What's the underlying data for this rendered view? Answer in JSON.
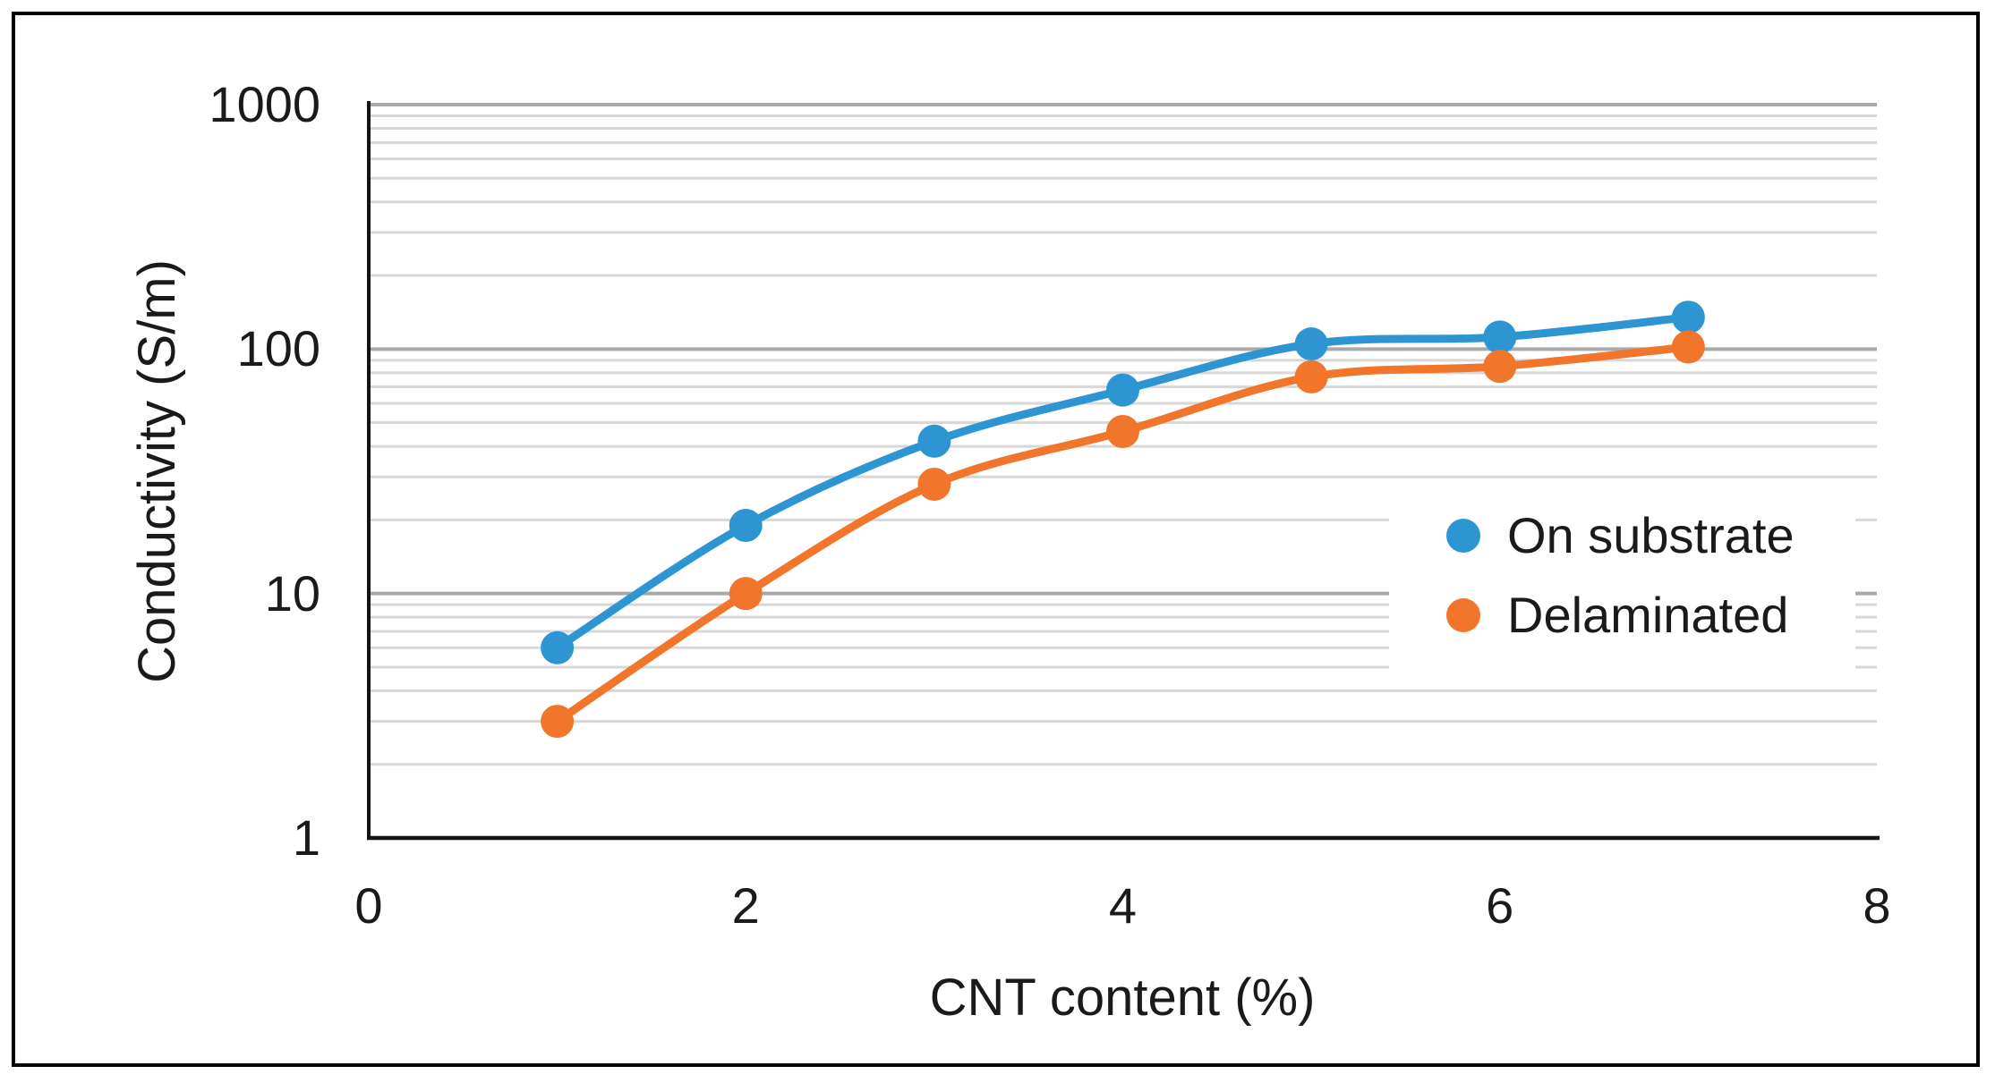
{
  "figure": {
    "background_color": "#FFFFFF",
    "frame_color": "#000000"
  },
  "chart_data": {
    "type": "line",
    "title": "",
    "xlabel": "CNT content (%)",
    "ylabel": "Conductivity (S/m)",
    "x": [
      1,
      2,
      3,
      4,
      5,
      6,
      7
    ],
    "series": [
      {
        "name": "On substrate",
        "color": "#2E95D3",
        "marker": "circle",
        "values": [
          6,
          19,
          42,
          68,
          105,
          112,
          135
        ]
      },
      {
        "name": "Delaminated",
        "color": "#F1752B",
        "marker": "circle",
        "values": [
          3,
          10,
          28,
          46,
          77,
          85,
          102
        ]
      }
    ],
    "xlim": [
      0,
      8
    ],
    "ylim": [
      1,
      1000
    ],
    "yscale": "log",
    "x_ticks": [
      0,
      2,
      4,
      6,
      8
    ],
    "y_ticks": [
      1,
      10,
      100,
      1000
    ],
    "grid": {
      "horizontal": true,
      "vertical": false,
      "log_minor_lines": true,
      "major_color": "#A9A9A9",
      "minor_color": "#D7D7D7"
    },
    "axis_line_color": "#141414",
    "legend": {
      "position": "middle-right",
      "background": "#FFFFFF",
      "border": "none"
    }
  }
}
